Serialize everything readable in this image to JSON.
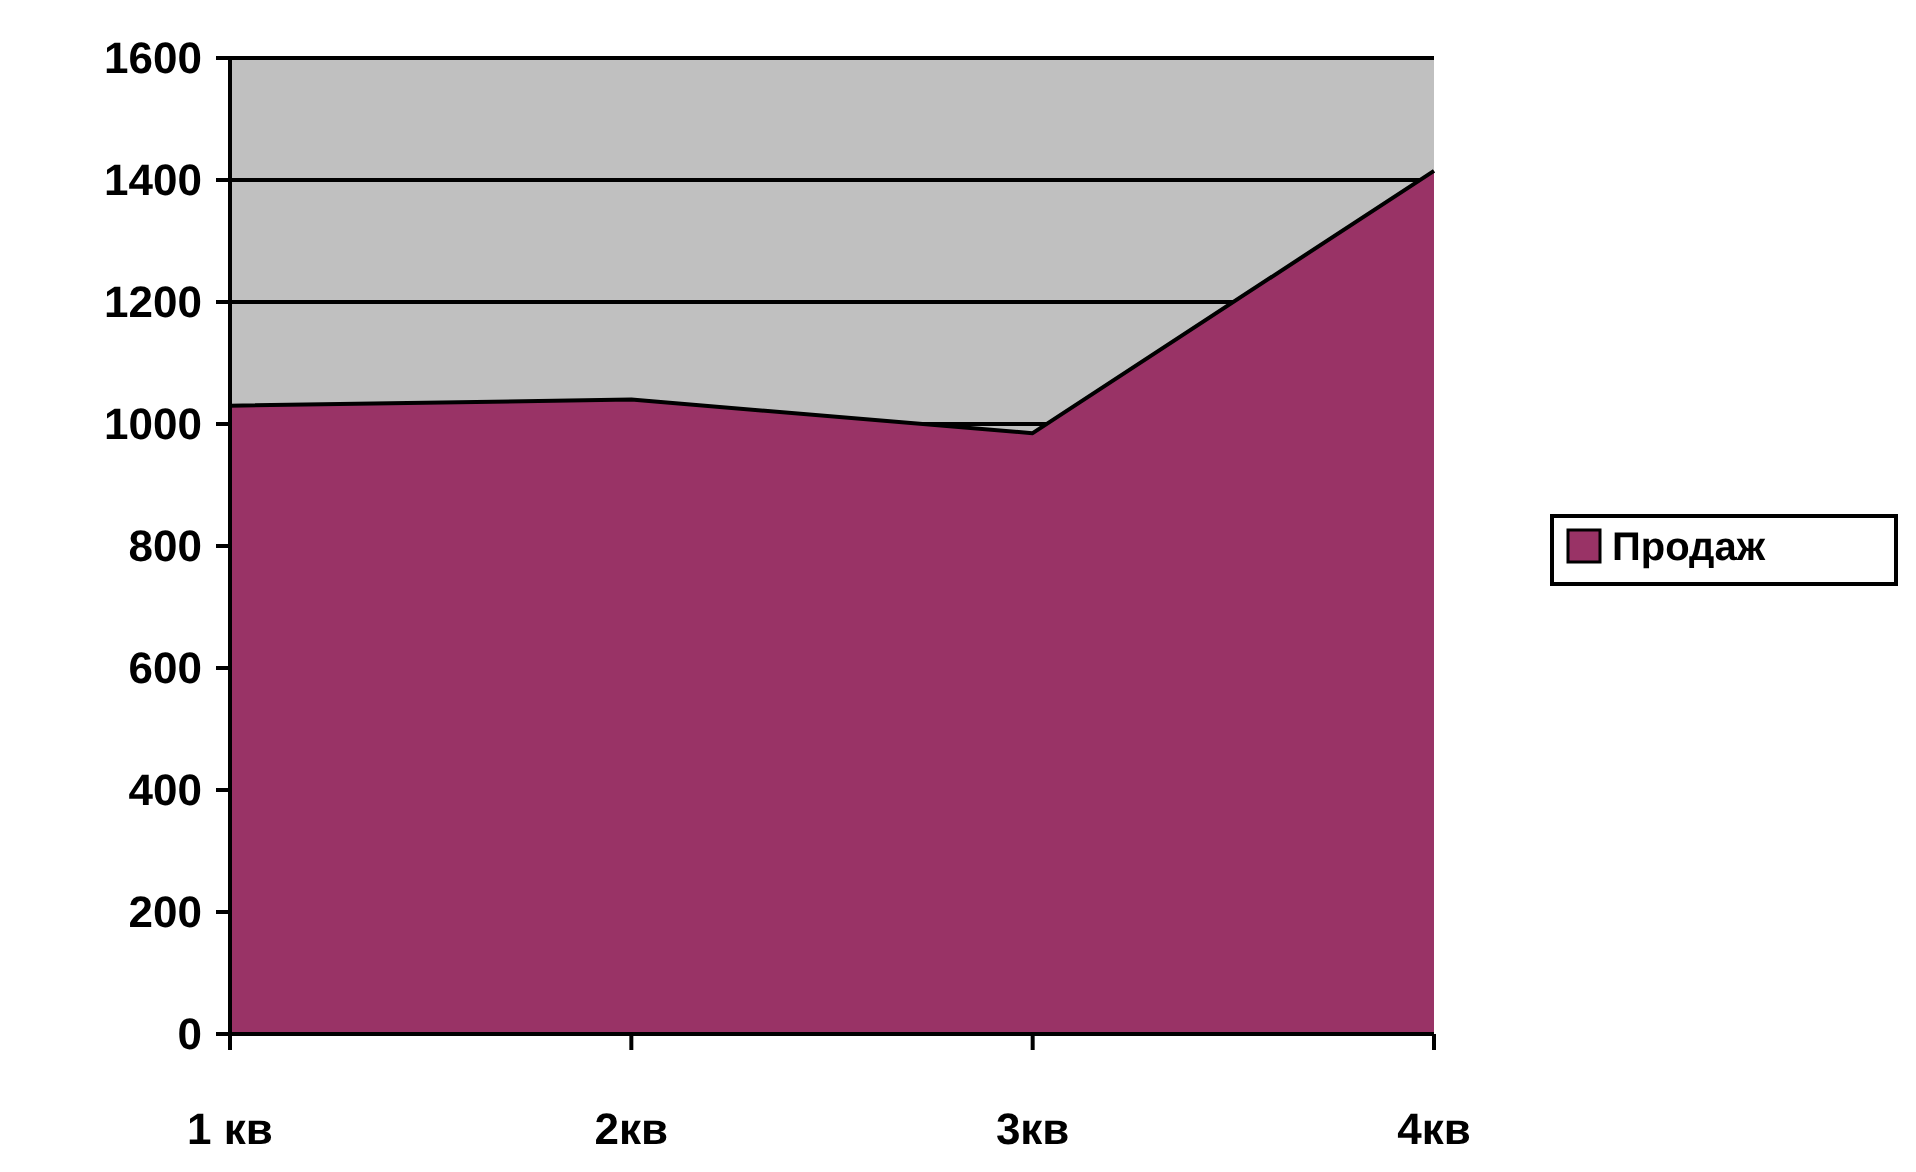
{
  "chart_data": {
    "type": "area",
    "categories": [
      "1 кв",
      "2кв",
      "3кв",
      "4кв"
    ],
    "series": [
      {
        "name": "Продаж",
        "color": "#993366",
        "values": [
          1030,
          1040,
          985,
          1415
        ]
      }
    ],
    "ylim": [
      0,
      1600
    ],
    "yticks": [
      0,
      200,
      400,
      600,
      800,
      1000,
      1200,
      1400,
      1600
    ],
    "grid": "y",
    "legend": "right"
  }
}
